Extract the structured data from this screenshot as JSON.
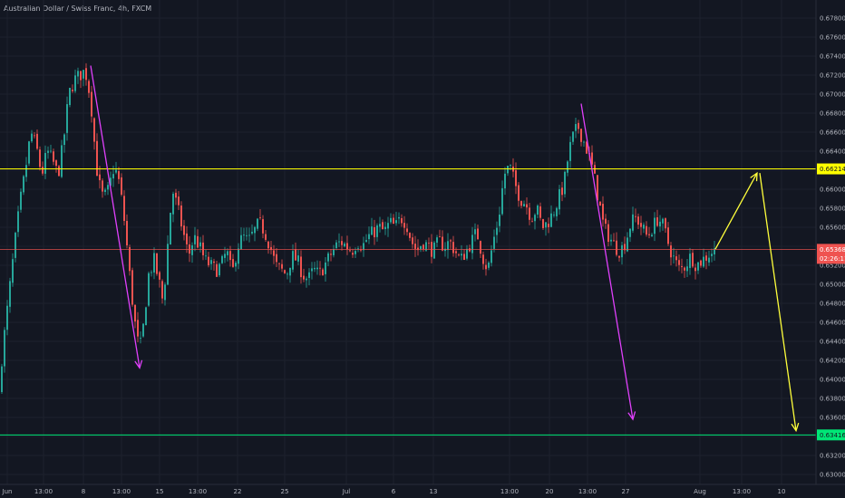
{
  "header": {
    "title": "Australian Dollar / Swiss Franc, 4h, FXCM"
  },
  "colors": {
    "background": "#131722",
    "grid": "#1e222d",
    "bull": "#26a69a",
    "bear": "#ef5350",
    "resistance": "#ffff00",
    "support": "#00e676",
    "price_line": "#ef5350",
    "arrow_magenta": "#e040fb",
    "arrow_yellow": "#ffff3b",
    "axis_text": "#b2b5be"
  },
  "chart_data": {
    "type": "candlestick",
    "title": "Australian Dollar / Swiss Franc, 4h, FXCM",
    "ylim": [
      0.6292,
      0.6786
    ],
    "y_ticks": [
      "0.67800",
      "0.67600",
      "0.67400",
      "0.67200",
      "0.67000",
      "0.66800",
      "0.66600",
      "0.66400",
      "0.66200",
      "0.66000",
      "0.65800",
      "0.65600",
      "0.65400",
      "0.65200",
      "0.65000",
      "0.64800",
      "0.64600",
      "0.64400",
      "0.64200",
      "0.64000",
      "0.63800",
      "0.63600",
      "0.63400",
      "0.63200",
      "0.63000"
    ],
    "x_ticks": [
      "Jun",
      "13:00",
      "8",
      "13:00",
      "15",
      "13:00",
      "22",
      "25",
      "Jul",
      "6",
      "13",
      "13:00",
      "20",
      "13:00",
      "27",
      "Aug",
      "13:00",
      "10"
    ],
    "grid": true,
    "horizontal_levels": [
      {
        "label": "0.66214",
        "value": 0.66214,
        "style": "resistance"
      },
      {
        "label": "0.63416",
        "value": 0.63416,
        "style": "support"
      }
    ],
    "current_price": {
      "label": "0.65368",
      "value": 0.65368,
      "countdown": "02:26:11"
    },
    "path": [
      [
        0,
        0.6385
      ],
      [
        6,
        0.644
      ],
      [
        12,
        0.649
      ],
      [
        18,
        0.654
      ],
      [
        24,
        0.6585
      ],
      [
        30,
        0.662
      ],
      [
        36,
        0.666
      ],
      [
        42,
        0.6645
      ],
      [
        48,
        0.6615
      ],
      [
        54,
        0.664
      ],
      [
        60,
        0.663
      ],
      [
        66,
        0.6615
      ],
      [
        72,
        0.665
      ],
      [
        78,
        0.67
      ],
      [
        84,
        0.6715
      ],
      [
        90,
        0.672
      ],
      [
        96,
        0.6725
      ],
      [
        102,
        0.6695
      ],
      [
        106,
        0.665
      ],
      [
        110,
        0.661
      ],
      [
        116,
        0.659
      ],
      [
        122,
        0.66
      ],
      [
        128,
        0.6625
      ],
      [
        134,
        0.6605
      ],
      [
        140,
        0.656
      ],
      [
        146,
        0.65
      ],
      [
        152,
        0.645
      ],
      [
        156,
        0.643
      ],
      [
        160,
        0.6455
      ],
      [
        166,
        0.651
      ],
      [
        172,
        0.6525
      ],
      [
        178,
        0.65
      ],
      [
        182,
        0.648
      ],
      [
        186,
        0.653
      ],
      [
        192,
        0.66
      ],
      [
        198,
        0.658
      ],
      [
        204,
        0.6555
      ],
      [
        210,
        0.653
      ],
      [
        216,
        0.655
      ],
      [
        222,
        0.654
      ],
      [
        228,
        0.6525
      ],
      [
        234,
        0.652
      ],
      [
        240,
        0.6515
      ],
      [
        246,
        0.652
      ],
      [
        252,
        0.6535
      ],
      [
        258,
        0.651
      ],
      [
        264,
        0.654
      ],
      [
        270,
        0.655
      ],
      [
        276,
        0.6545
      ],
      [
        282,
        0.6555
      ],
      [
        288,
        0.6565
      ],
      [
        294,
        0.6555
      ],
      [
        300,
        0.654
      ],
      [
        306,
        0.652
      ],
      [
        312,
        0.6515
      ],
      [
        318,
        0.651
      ],
      [
        324,
        0.653
      ],
      [
        330,
        0.6525
      ],
      [
        336,
        0.651
      ],
      [
        342,
        0.6505
      ],
      [
        348,
        0.6515
      ],
      [
        354,
        0.651
      ],
      [
        360,
        0.652
      ],
      [
        366,
        0.653
      ],
      [
        372,
        0.654
      ],
      [
        378,
        0.6545
      ],
      [
        384,
        0.654
      ],
      [
        390,
        0.6535
      ],
      [
        396,
        0.6545
      ],
      [
        402,
        0.654
      ],
      [
        408,
        0.655
      ],
      [
        414,
        0.6555
      ],
      [
        420,
        0.656
      ],
      [
        426,
        0.6555
      ],
      [
        432,
        0.6565
      ],
      [
        438,
        0.656
      ],
      [
        444,
        0.657
      ],
      [
        450,
        0.6565
      ],
      [
        456,
        0.6545
      ],
      [
        462,
        0.6535
      ],
      [
        468,
        0.6545
      ],
      [
        474,
        0.654
      ],
      [
        480,
        0.6535
      ],
      [
        486,
        0.6545
      ],
      [
        492,
        0.654
      ],
      [
        498,
        0.6545
      ],
      [
        504,
        0.6535
      ],
      [
        510,
        0.6525
      ],
      [
        516,
        0.6535
      ],
      [
        522,
        0.6545
      ],
      [
        528,
        0.6555
      ],
      [
        534,
        0.653
      ],
      [
        540,
        0.6515
      ],
      [
        546,
        0.6545
      ],
      [
        552,
        0.657
      ],
      [
        558,
        0.6615
      ],
      [
        564,
        0.6625
      ],
      [
        570,
        0.6605
      ],
      [
        576,
        0.659
      ],
      [
        582,
        0.6585
      ],
      [
        588,
        0.657
      ],
      [
        594,
        0.658
      ],
      [
        600,
        0.656
      ],
      [
        606,
        0.6565
      ],
      [
        612,
        0.6575
      ],
      [
        618,
        0.659
      ],
      [
        624,
        0.6605
      ],
      [
        628,
        0.663
      ],
      [
        632,
        0.665
      ],
      [
        636,
        0.666
      ],
      [
        640,
        0.6665
      ],
      [
        644,
        0.6655
      ],
      [
        650,
        0.664
      ],
      [
        656,
        0.662
      ],
      [
        662,
        0.659
      ],
      [
        668,
        0.656
      ],
      [
        674,
        0.655
      ],
      [
        680,
        0.654
      ],
      [
        686,
        0.6535
      ],
      [
        692,
        0.6545
      ],
      [
        698,
        0.6565
      ],
      [
        704,
        0.657
      ],
      [
        710,
        0.656
      ],
      [
        716,
        0.655
      ],
      [
        722,
        0.656
      ],
      [
        728,
        0.657
      ],
      [
        734,
        0.656
      ],
      [
        740,
        0.654
      ],
      [
        746,
        0.6525
      ],
      [
        752,
        0.6515
      ],
      [
        758,
        0.652
      ],
      [
        764,
        0.653
      ],
      [
        770,
        0.652
      ],
      [
        776,
        0.6525
      ],
      [
        782,
        0.653
      ],
      [
        788,
        0.6535
      ]
    ],
    "arrows": [
      {
        "from": [
          100,
          0.673
        ],
        "to": [
          154,
          0.6412
        ],
        "style": "magenta"
      },
      {
        "from": [
          641,
          0.669
        ],
        "to": [
          698,
          0.6358
        ],
        "style": "magenta"
      },
      {
        "from": [
          789,
          0.6537
        ],
        "to": [
          835,
          0.6617
        ],
        "style": "yellow"
      },
      {
        "from": [
          838,
          0.6617
        ],
        "to": [
          878,
          0.6346
        ],
        "style": "yellow"
      }
    ]
  }
}
